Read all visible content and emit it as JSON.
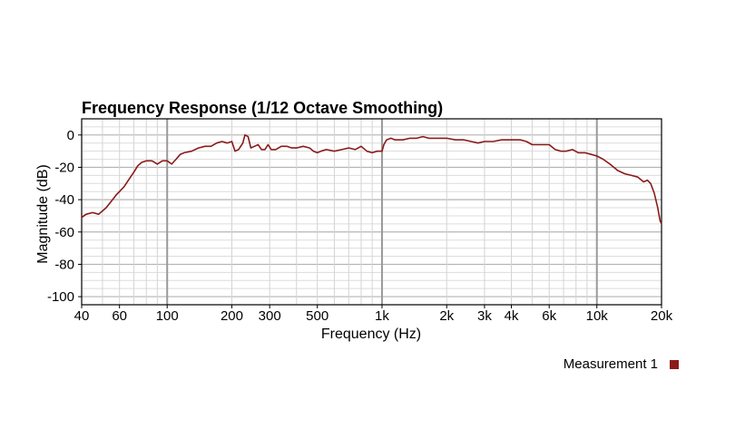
{
  "chart_data": {
    "type": "line",
    "title": "Frequency Response (1/12 Octave Smoothing)",
    "xlabel": "Frequency (Hz)",
    "ylabel": "Magnitude (dB)",
    "x_scale": "log",
    "xlim": [
      40,
      20000
    ],
    "ylim": [
      -105,
      10
    ],
    "x_ticks": [
      {
        "value": 40,
        "label": "40"
      },
      {
        "value": 60,
        "label": "60"
      },
      {
        "value": 100,
        "label": "100"
      },
      {
        "value": 200,
        "label": "200"
      },
      {
        "value": 300,
        "label": "300"
      },
      {
        "value": 500,
        "label": "500"
      },
      {
        "value": 1000,
        "label": "1k"
      },
      {
        "value": 2000,
        "label": "2k"
      },
      {
        "value": 3000,
        "label": "3k"
      },
      {
        "value": 4000,
        "label": "4k"
      },
      {
        "value": 6000,
        "label": "6k"
      },
      {
        "value": 10000,
        "label": "10k"
      },
      {
        "value": 20000,
        "label": "20k"
      }
    ],
    "y_ticks": [
      {
        "value": 0,
        "label": "0"
      },
      {
        "value": -20,
        "label": "-20"
      },
      {
        "value": -40,
        "label": "-40"
      },
      {
        "value": -60,
        "label": "-60"
      },
      {
        "value": -80,
        "label": "-80"
      },
      {
        "value": -100,
        "label": "-100"
      }
    ],
    "grid": true,
    "legend_position": "bottom-right",
    "series": [
      {
        "name": "Measurement 1",
        "color": "#8b1a1a",
        "points": [
          [
            40,
            -51
          ],
          [
            42,
            -49
          ],
          [
            45,
            -48
          ],
          [
            48,
            -49
          ],
          [
            50,
            -47
          ],
          [
            52,
            -45
          ],
          [
            55,
            -41
          ],
          [
            58,
            -37
          ],
          [
            60,
            -35
          ],
          [
            63,
            -32
          ],
          [
            66,
            -28
          ],
          [
            70,
            -23
          ],
          [
            73,
            -19
          ],
          [
            76,
            -17
          ],
          [
            80,
            -16
          ],
          [
            85,
            -16
          ],
          [
            90,
            -18
          ],
          [
            95,
            -16
          ],
          [
            100,
            -16
          ],
          [
            105,
            -18
          ],
          [
            110,
            -15
          ],
          [
            115,
            -12
          ],
          [
            120,
            -11
          ],
          [
            130,
            -10
          ],
          [
            140,
            -8
          ],
          [
            150,
            -7
          ],
          [
            160,
            -7
          ],
          [
            170,
            -5
          ],
          [
            180,
            -4
          ],
          [
            190,
            -5
          ],
          [
            200,
            -4
          ],
          [
            207,
            -10
          ],
          [
            215,
            -9
          ],
          [
            225,
            -5
          ],
          [
            230,
            0
          ],
          [
            238,
            -1
          ],
          [
            245,
            -8
          ],
          [
            255,
            -7
          ],
          [
            265,
            -6
          ],
          [
            275,
            -9
          ],
          [
            285,
            -9
          ],
          [
            295,
            -6
          ],
          [
            305,
            -9
          ],
          [
            320,
            -9
          ],
          [
            340,
            -7
          ],
          [
            360,
            -7
          ],
          [
            380,
            -8
          ],
          [
            400,
            -8
          ],
          [
            430,
            -7
          ],
          [
            460,
            -8
          ],
          [
            480,
            -10
          ],
          [
            500,
            -11
          ],
          [
            520,
            -10
          ],
          [
            550,
            -9
          ],
          [
            600,
            -10
          ],
          [
            650,
            -9
          ],
          [
            700,
            -8
          ],
          [
            750,
            -9
          ],
          [
            800,
            -7
          ],
          [
            850,
            -10
          ],
          [
            900,
            -11
          ],
          [
            950,
            -10
          ],
          [
            1000,
            -10
          ],
          [
            1020,
            -6
          ],
          [
            1050,
            -3
          ],
          [
            1100,
            -2
          ],
          [
            1150,
            -3
          ],
          [
            1250,
            -3
          ],
          [
            1350,
            -2
          ],
          [
            1450,
            -2
          ],
          [
            1550,
            -1
          ],
          [
            1650,
            -2
          ],
          [
            1800,
            -2
          ],
          [
            2000,
            -2
          ],
          [
            2200,
            -3
          ],
          [
            2400,
            -3
          ],
          [
            2600,
            -4
          ],
          [
            2800,
            -5
          ],
          [
            3000,
            -4
          ],
          [
            3300,
            -4
          ],
          [
            3600,
            -3
          ],
          [
            4000,
            -3
          ],
          [
            4400,
            -3
          ],
          [
            4700,
            -4
          ],
          [
            5000,
            -6
          ],
          [
            5300,
            -6
          ],
          [
            5600,
            -6
          ],
          [
            6000,
            -6
          ],
          [
            6400,
            -9
          ],
          [
            6800,
            -10
          ],
          [
            7200,
            -10
          ],
          [
            7700,
            -9
          ],
          [
            8200,
            -11
          ],
          [
            8800,
            -11
          ],
          [
            9400,
            -12
          ],
          [
            10000,
            -13
          ],
          [
            10700,
            -15
          ],
          [
            11500,
            -18
          ],
          [
            12500,
            -22
          ],
          [
            13500,
            -24
          ],
          [
            14500,
            -25
          ],
          [
            15500,
            -26
          ],
          [
            16500,
            -29
          ],
          [
            17200,
            -28
          ],
          [
            17800,
            -30
          ],
          [
            18500,
            -36
          ],
          [
            19200,
            -45
          ],
          [
            19700,
            -53
          ],
          [
            20000,
            -55
          ]
        ]
      }
    ]
  }
}
